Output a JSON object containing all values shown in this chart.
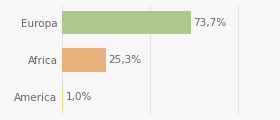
{
  "categories": [
    "Europa",
    "Africa",
    "America"
  ],
  "values": [
    73.7,
    25.3,
    1.0
  ],
  "labels": [
    "73,7%",
    "25,3%",
    "1,0%"
  ],
  "bar_colors": [
    "#adc98a",
    "#e8b07a",
    "#e8d870"
  ],
  "background_color": "#f7f7f7",
  "xlim": [
    0,
    105
  ],
  "bar_height": 0.62,
  "label_fontsize": 7.5,
  "tick_fontsize": 7.5,
  "grid_color": "#e0e0e0",
  "text_color": "#666666"
}
